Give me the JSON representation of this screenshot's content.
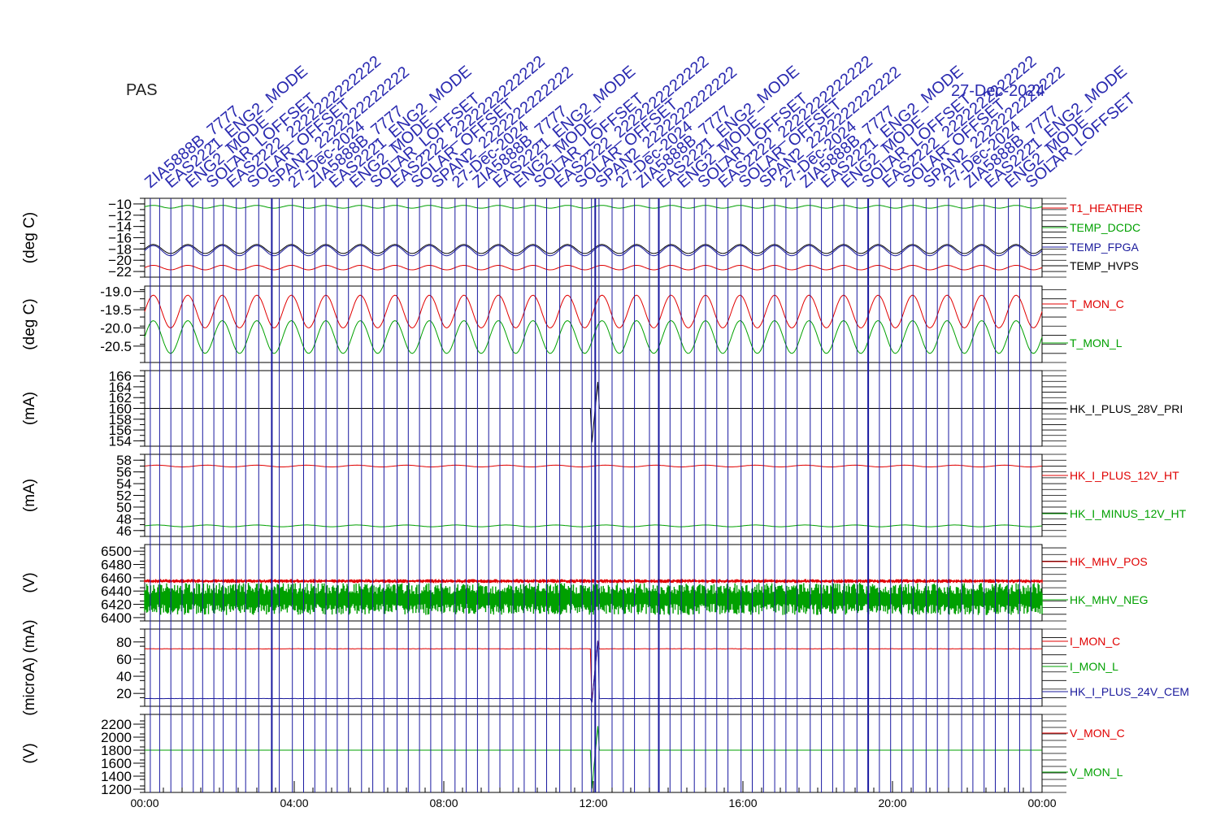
{
  "header": {
    "instrument": "PAS",
    "annotation_texts": [
      "ZIA5888B_7777",
      "EAS2221_ENG2_MODE",
      "ENG2_MODE",
      "SOLAR_LOFFSET",
      "EAS2222_2222222222222",
      "SOLAR_OFFSET",
      "SPAN2_2222222222222",
      "27-Dec-2024"
    ],
    "date_label": "27-Dec-2024"
  },
  "colors": {
    "red": "#e00000",
    "green": "#00a000",
    "blue": "#1a1a9c",
    "black": "#000000",
    "marker": "#1a1aa0"
  },
  "x_axis": {
    "range_hours": [
      0,
      24
    ],
    "tick_labels": [
      "00:00",
      "04:00",
      "08:00",
      "12:00",
      "16:00",
      "20:00",
      "00:00"
    ]
  },
  "chart_data": [
    {
      "type": "line",
      "ylabel": "(deg C)",
      "ylim": [
        -23,
        -9
      ],
      "yticks": [
        -10,
        -12,
        -14,
        -16,
        -18,
        -20,
        -22
      ],
      "x_range_hours": [
        0,
        24
      ],
      "series": [
        {
          "name": "T1_HEATHER",
          "color": "red",
          "base": -21.3,
          "amp": 0.4,
          "cycles": 26
        },
        {
          "name": "TEMP_DCDC",
          "color": "green",
          "base": -10.5,
          "amp": 0.25,
          "cycles": 26
        },
        {
          "name": "TEMP_FPGA",
          "color": "blue",
          "base": -18.3,
          "amp": 0.9,
          "cycles": 26
        },
        {
          "name": "TEMP_HVPS",
          "color": "black",
          "base": -18.0,
          "amp": 0.8,
          "cycles": 26
        }
      ]
    },
    {
      "type": "line",
      "ylabel": "(deg C)",
      "ylim": [
        -20.95,
        -18.85
      ],
      "yticks": [
        -19.0,
        -19.5,
        -20.0,
        -20.5
      ],
      "tick_text": [
        "-19.0",
        "-19.5",
        "-20.0",
        "-20.5"
      ],
      "x_range_hours": [
        0,
        24
      ],
      "series": [
        {
          "name": "T_MON_C",
          "color": "red",
          "base": -19.55,
          "amp": 0.45,
          "cycles": 26
        },
        {
          "name": "T_MON_L",
          "color": "green",
          "base": -20.25,
          "amp": 0.45,
          "cycles": 26
        }
      ]
    },
    {
      "type": "line",
      "ylabel": "(mA)",
      "ylim": [
        153,
        167
      ],
      "yticks": [
        154,
        156,
        158,
        160,
        162,
        164,
        166
      ],
      "x_range_hours": [
        0,
        24
      ],
      "series": [
        {
          "name": "HK_I_PLUS_28V_PRI",
          "color": "black",
          "base": 160.0,
          "amp": 0.0,
          "cycles": 0
        }
      ]
    },
    {
      "type": "line",
      "ylabel": "(mA)",
      "ylim": [
        45,
        59
      ],
      "yticks": [
        46,
        48,
        50,
        52,
        54,
        56,
        58
      ],
      "x_range_hours": [
        0,
        24
      ],
      "series": [
        {
          "name": "HK_I_PLUS_12V_HT",
          "color": "red",
          "base": 57.0,
          "amp": 0.15,
          "cycles": 18
        },
        {
          "name": "HK_I_MINUS_12V_HT",
          "color": "green",
          "base": 46.8,
          "amp": 0.15,
          "cycles": 18
        }
      ]
    },
    {
      "type": "line",
      "ylabel": "(V)",
      "ylim": [
        6395,
        6510
      ],
      "yticks": [
        6400,
        6420,
        6440,
        6460,
        6480,
        6500
      ],
      "x_range_hours": [
        0,
        24
      ],
      "series": [
        {
          "name": "HK_MHV_POS",
          "color": "red",
          "base": 6455,
          "amp": 3,
          "cycles": 0
        },
        {
          "name": "HK_MHV_NEG",
          "color": "green",
          "base": 6428,
          "amp": 24,
          "cycles": 0
        }
      ]
    },
    {
      "type": "line",
      "ylabel": "(microA) (mA)",
      "ylim": [
        5,
        95
      ],
      "yticks": [
        20,
        40,
        60,
        80
      ],
      "x_range_hours": [
        0,
        24
      ],
      "series": [
        {
          "name": "I_MON_C",
          "color": "red",
          "base": 72,
          "amp": 0.5,
          "cycles": 0
        },
        {
          "name": "I_MON_L",
          "color": "green",
          "base": null,
          "amp": 0,
          "cycles": 0
        },
        {
          "name": "HK_I_PLUS_24V_CEM",
          "color": "blue",
          "base": 14,
          "amp": 0.2,
          "cycles": 0
        }
      ]
    },
    {
      "type": "line",
      "ylabel": "(V)",
      "ylim": [
        1150,
        2350
      ],
      "yticks": [
        1200,
        1400,
        1600,
        1800,
        2000,
        2200
      ],
      "x_range_hours": [
        0,
        24
      ],
      "series": [
        {
          "name": "V_MON_C",
          "color": "red",
          "base": null,
          "amp": 0,
          "cycles": 0
        },
        {
          "name": "V_MON_L",
          "color": "green",
          "base": 1800,
          "amp": 0,
          "cycles": 0
        }
      ]
    }
  ],
  "event_markers_hours": [
    0.15,
    0.4,
    0.7,
    1.0,
    1.3,
    1.55,
    1.85,
    2.1,
    2.45,
    2.7,
    3.05,
    3.4,
    3.6,
    3.95,
    4.25,
    4.55,
    4.85,
    5.15,
    5.45,
    5.8,
    6.1,
    6.4,
    6.75,
    7.05,
    7.35,
    7.65,
    7.95,
    8.3,
    8.6,
    8.9,
    9.2,
    9.5,
    9.85,
    10.15,
    10.45,
    10.75,
    11.1,
    11.4,
    11.7,
    11.95,
    12.05,
    12.15,
    12.5,
    12.8,
    13.1,
    13.5,
    13.75,
    14.05,
    14.35,
    14.7,
    15.0,
    15.3,
    15.6,
    15.95,
    16.25,
    16.55,
    16.85,
    17.15,
    17.45,
    17.8,
    18.1,
    18.4,
    18.7,
    19.05,
    19.35,
    19.65,
    19.95,
    20.25,
    20.55,
    20.9,
    21.2,
    21.5,
    21.85,
    22.15,
    22.45,
    22.75,
    23.1,
    23.4,
    23.7
  ]
}
